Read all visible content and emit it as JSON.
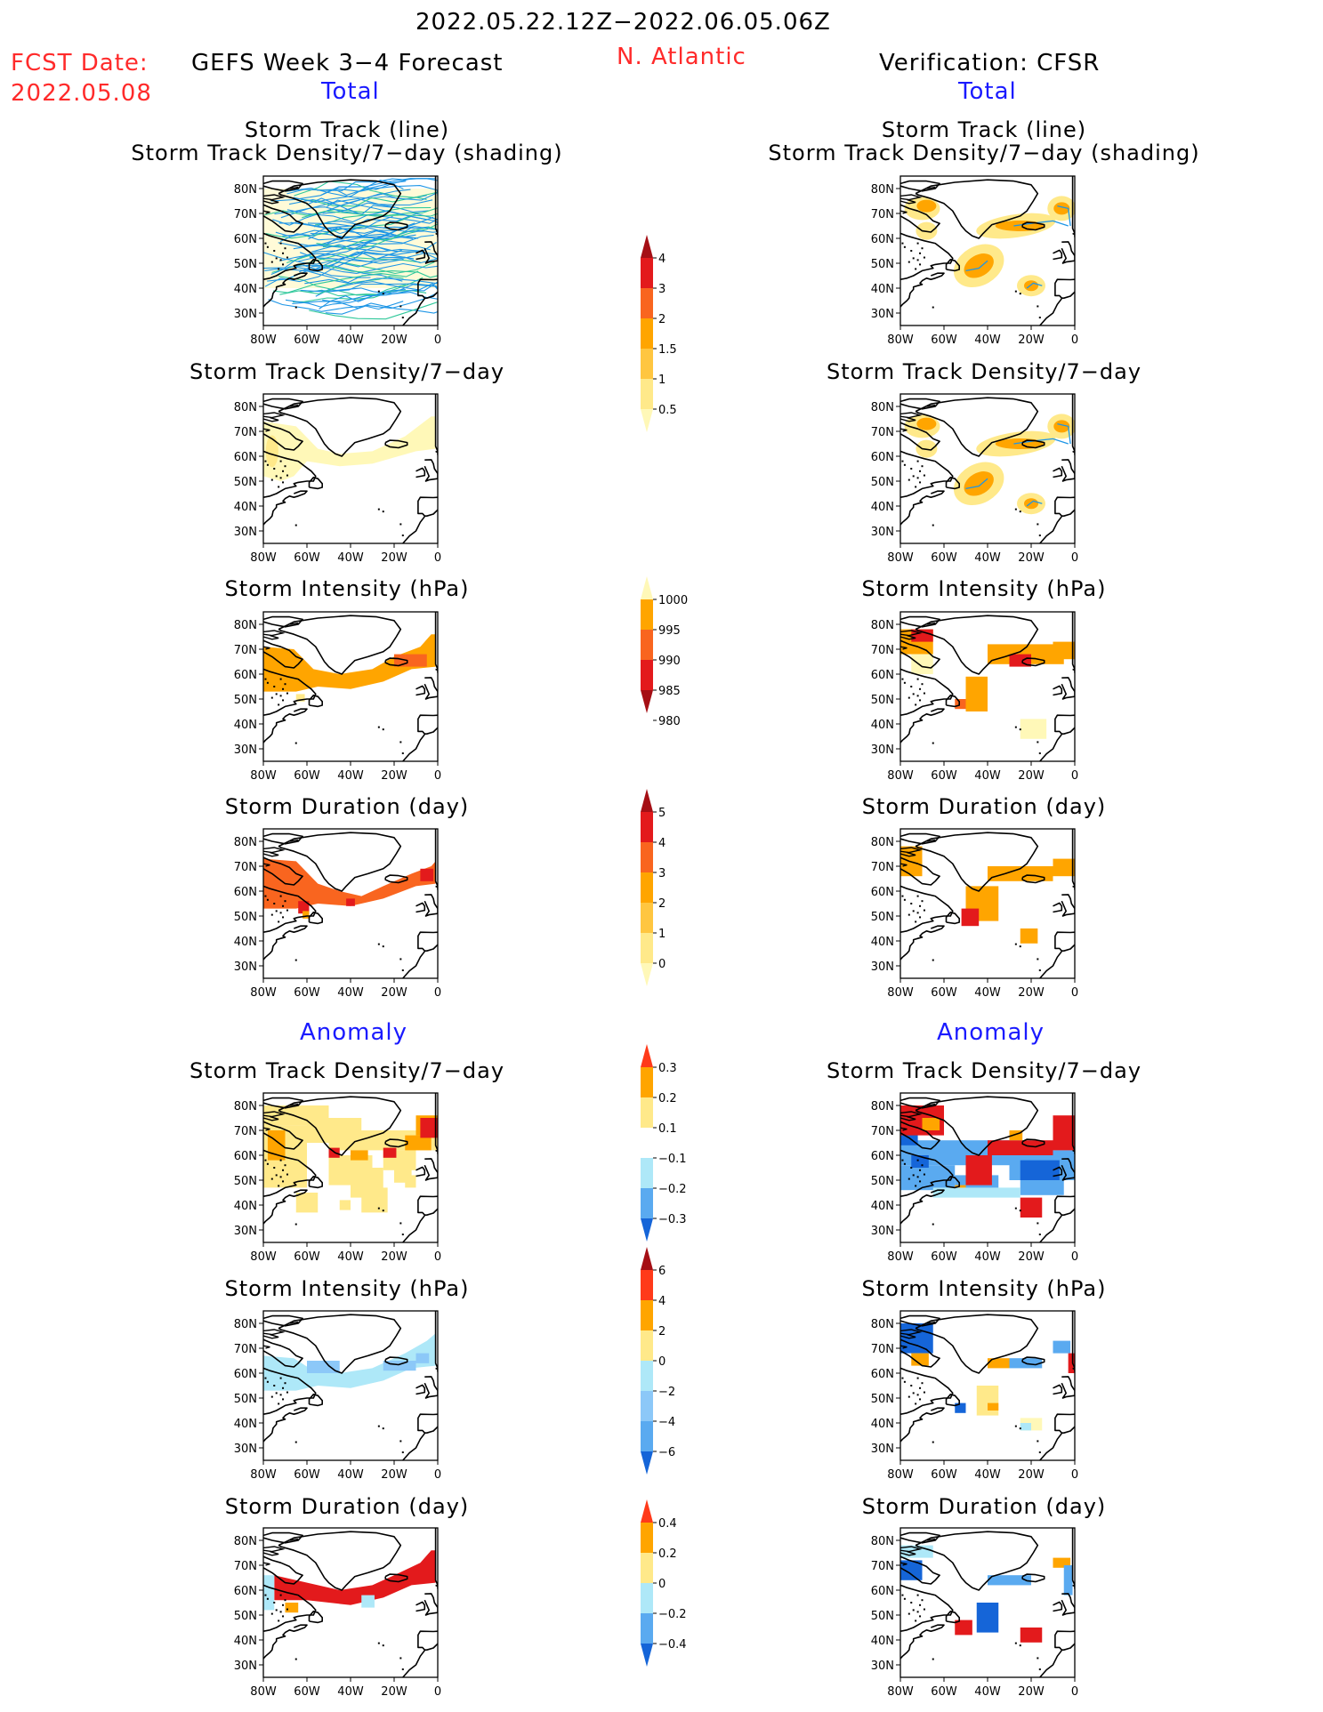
{
  "header": {
    "date_range": "2022.05.22.12Z−2022.06.05.06Z",
    "fcst_label": "FCST Date:",
    "fcst_date": "2022.05.08",
    "model_title": "GEFS Week 3−4 Forecast",
    "region": "N. Atlantic",
    "verification": "Verification: CFSR",
    "total_left": "Total",
    "total_right": "Total",
    "anomaly_left": "Anomaly",
    "anomaly_right": "Anomaly"
  },
  "titles": {
    "track_line": "Storm Track (line)",
    "track_shading": "Storm Track Density/7−day (shading)",
    "density": "Storm Track Density/7−day",
    "intensity": "Storm Intensity (hPa)",
    "duration": "Storm Duration (day)"
  },
  "axes": {
    "lat_labels": [
      "80N",
      "70N",
      "60N",
      "50N",
      "40N",
      "30N"
    ],
    "lon_labels": [
      "80W",
      "60W",
      "40W",
      "20W",
      "0"
    ]
  },
  "colorbars": {
    "density_total": {
      "labels": [
        "4",
        "3",
        "2",
        "1.5",
        "1",
        "0.5"
      ],
      "colors": [
        "#a50f15",
        "#e31a1c",
        "#f9651f",
        "#ffa500",
        "#ffc640",
        "#ffe98a",
        "#fff8b8"
      ]
    },
    "intensity_total": {
      "labels": [
        "1000",
        "995",
        "990",
        "985",
        "980"
      ],
      "colors": [
        "#fff8b8",
        "#ffa500",
        "#f9651f",
        "#e31a1c",
        "#a50f15"
      ]
    },
    "duration_total": {
      "labels": [
        "5",
        "4",
        "3",
        "2",
        "1",
        "0"
      ],
      "colors": [
        "#a50f15",
        "#e31a1c",
        "#f9651f",
        "#ffa500",
        "#ffc640",
        "#ffe98a",
        "#fff8b8"
      ]
    },
    "density_anom": {
      "labels": [
        "0.3",
        "0.2",
        "0.1",
        "−0.1",
        "−0.2",
        "−0.3"
      ],
      "colors": [
        "#ff3a1a",
        "#ffa500",
        "#ffe98a",
        "#ffffff",
        "#aee8f8",
        "#5aaaf0",
        "#1565d8"
      ]
    },
    "intensity_anom": {
      "labels": [
        "6",
        "4",
        "2",
        "0",
        "−2",
        "−4",
        "−6"
      ],
      "colors": [
        "#a50f15",
        "#ff3a1a",
        "#ffa500",
        "#ffe98a",
        "#aee8f8",
        "#8cc8f8",
        "#5aaaf0",
        "#1565d8"
      ]
    },
    "duration_anom": {
      "labels": [
        "0.4",
        "0.2",
        "0",
        "−0.2",
        "−0.4"
      ],
      "colors": [
        "#ff3a1a",
        "#ffa500",
        "#ffe98a",
        "#aee8f8",
        "#5aaaf0",
        "#1565d8"
      ]
    }
  },
  "palette": {
    "light_yellow": "#fff8b8",
    "pale_orange": "#ffe98a",
    "orange": "#ffa500",
    "dark_orange": "#f9651f",
    "red": "#e31a1c",
    "dark_red": "#a50f15",
    "light_blue": "#aee8f8",
    "mid_blue": "#5aaaf0",
    "dark_blue": "#1565d8",
    "track_blue": "#1e96e6",
    "track_green": "#2fc89a"
  }
}
